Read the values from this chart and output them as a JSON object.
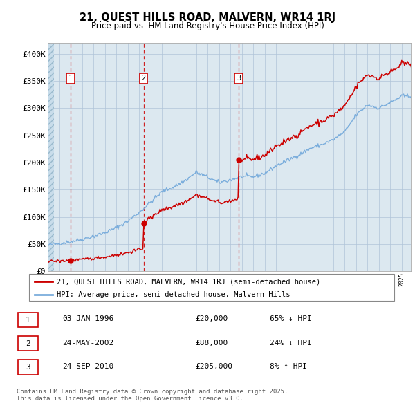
{
  "title_line1": "21, QUEST HILLS ROAD, MALVERN, WR14 1RJ",
  "title_line2": "Price paid vs. HM Land Registry's House Price Index (HPI)",
  "ylabel_ticks": [
    "£0",
    "£50K",
    "£100K",
    "£150K",
    "£200K",
    "£250K",
    "£300K",
    "£350K",
    "£400K"
  ],
  "ytick_vals": [
    0,
    50000,
    100000,
    150000,
    200000,
    250000,
    300000,
    350000,
    400000
  ],
  "ylim": [
    0,
    420000
  ],
  "xlim_start": 1994.0,
  "xlim_end": 2025.8,
  "sale_dates": [
    1996.01,
    2002.39,
    2010.73
  ],
  "sale_prices": [
    20000,
    88000,
    205000
  ],
  "sale_labels": [
    "1",
    "2",
    "3"
  ],
  "legend_line1": "21, QUEST HILLS ROAD, MALVERN, WR14 1RJ (semi-detached house)",
  "legend_line2": "HPI: Average price, semi-detached house, Malvern Hills",
  "sale_color": "#cc0000",
  "hpi_color": "#7aaddc",
  "annotation_color": "#cc0000",
  "footer_text": "Contains HM Land Registry data © Crown copyright and database right 2025.\nThis data is licensed under the Open Government Licence v3.0.",
  "table_rows": [
    [
      "1",
      "03-JAN-1996",
      "£20,000",
      "65% ↓ HPI"
    ],
    [
      "2",
      "24-MAY-2002",
      "£88,000",
      "24% ↓ HPI"
    ],
    [
      "3",
      "24-SEP-2010",
      "£205,000",
      "8% ↑ HPI"
    ]
  ],
  "chart_bg": "#dce8f0",
  "grid_color": "#b0c4d8",
  "hatch_color": "#b8cfe0"
}
